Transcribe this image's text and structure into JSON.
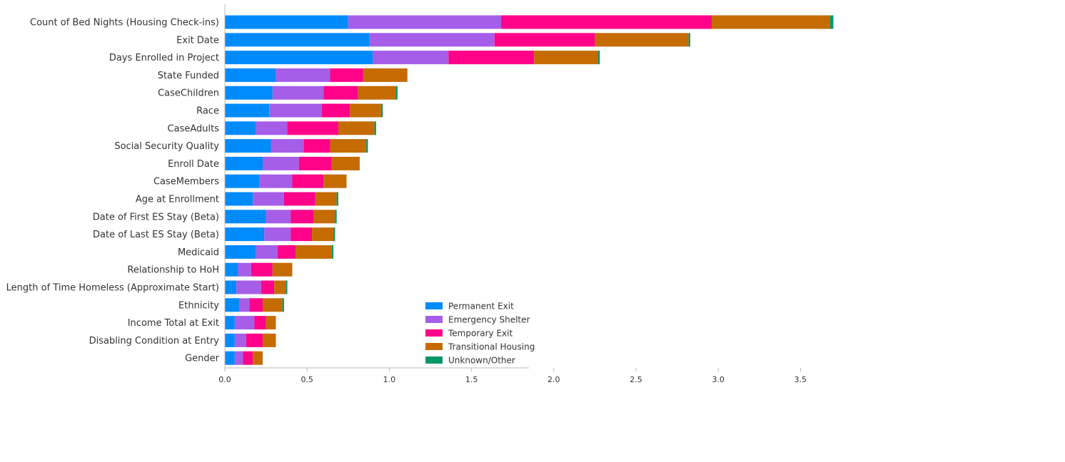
{
  "chart_data": {
    "type": "bar",
    "orientation": "horizontal",
    "stacked": true,
    "title": "",
    "xlabel": "",
    "ylabel": "",
    "xlim": [
      0,
      3.7
    ],
    "xticks": [
      0.0,
      0.5,
      1.0,
      1.5,
      2.0,
      2.5,
      3.0,
      3.5
    ],
    "xtick_labels": [
      "0.0",
      "0.5",
      "1.0",
      "1.5",
      "2.0",
      "2.5",
      "3.0",
      "3.5"
    ],
    "grid": false,
    "legend_position": "lower-right",
    "categories": [
      "Count of Bed Nights (Housing Check-ins)",
      "Exit Date",
      "Days Enrolled in Project",
      "State Funded",
      "CaseChildren",
      "Race",
      "CaseAdults",
      "Social Security Quality",
      "Enroll Date",
      "CaseMembers",
      "Age at Enrollment",
      "Date of First ES Stay (Beta)",
      "Date of Last ES Stay (Beta)",
      "Medicaid",
      "Relationship to HoH",
      "Length of Time Homeless (Approximate Start)",
      "Ethnicity",
      "Income Total at Exit",
      "Disabling Condition at Entry",
      "Gender"
    ],
    "series": [
      {
        "name": "Permanent Exit",
        "color": "#008bfb",
        "values": [
          0.75,
          0.88,
          0.9,
          0.31,
          0.29,
          0.27,
          0.19,
          0.28,
          0.23,
          0.21,
          0.17,
          0.25,
          0.24,
          0.19,
          0.08,
          0.07,
          0.09,
          0.06,
          0.06,
          0.06
        ]
      },
      {
        "name": "Emergency Shelter",
        "color": "#a65ee9",
        "values": [
          0.93,
          0.76,
          0.46,
          0.33,
          0.31,
          0.32,
          0.19,
          0.2,
          0.22,
          0.2,
          0.19,
          0.15,
          0.16,
          0.13,
          0.08,
          0.15,
          0.06,
          0.12,
          0.07,
          0.05
        ]
      },
      {
        "name": "Temporary Exit",
        "color": "#ff0289",
        "values": [
          1.28,
          0.61,
          0.52,
          0.2,
          0.21,
          0.17,
          0.31,
          0.16,
          0.2,
          0.19,
          0.19,
          0.14,
          0.13,
          0.11,
          0.13,
          0.08,
          0.08,
          0.07,
          0.1,
          0.06
        ]
      },
      {
        "name": "Transitional Housing",
        "color": "#c56b00",
        "values": [
          0.72,
          0.57,
          0.39,
          0.27,
          0.23,
          0.19,
          0.22,
          0.22,
          0.17,
          0.14,
          0.13,
          0.13,
          0.13,
          0.22,
          0.12,
          0.07,
          0.12,
          0.06,
          0.08,
          0.06
        ]
      },
      {
        "name": "Unknown/Other",
        "color": "#009869",
        "values": [
          0.02,
          0.01,
          0.01,
          0.0,
          0.01,
          0.01,
          0.01,
          0.01,
          0.0,
          0.0,
          0.01,
          0.01,
          0.01,
          0.01,
          0.0,
          0.01,
          0.01,
          0.0,
          0.0,
          0.0
        ]
      }
    ]
  }
}
